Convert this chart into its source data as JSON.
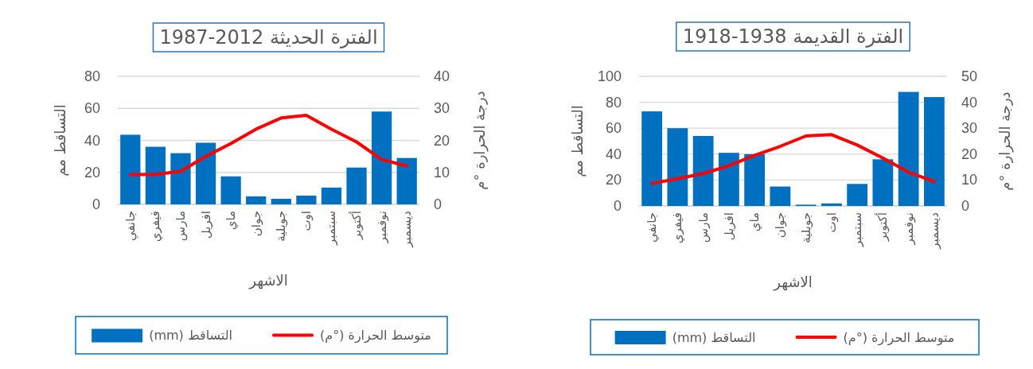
{
  "chart_data": [
    {
      "type": "bar",
      "title": "الفترة الحديثة 2012-1987",
      "xlabel": "الاشهر",
      "ylabel": "التساقط مم",
      "y2label": "درجة الحرارة °م",
      "categories": [
        "جانفي",
        "فيفري",
        "مارس",
        "افريل",
        "ماي",
        "جوان",
        "جويلية",
        "اوت",
        "سبتمبر",
        "أكتوبر",
        "نوفمبر",
        "ديسمبر"
      ],
      "series": [
        {
          "name": "التساقط (mm)",
          "color": "#0070c0",
          "values": [
            43.5,
            36,
            32,
            38.5,
            17.5,
            5,
            3.5,
            5.5,
            10.5,
            23,
            58,
            29
          ]
        },
        {
          "name": "متوسط الحرارة (°م)",
          "type": "line",
          "axis": "y2",
          "color": "#ff0000",
          "values": [
            9.3,
            9.4,
            10.3,
            15,
            19,
            23.5,
            27,
            27.8,
            23.5,
            19.5,
            14,
            12
          ]
        }
      ],
      "ylim": [
        0,
        80
      ],
      "yticks": [
        0,
        20,
        40,
        60,
        80
      ],
      "y2lim": [
        0,
        40
      ],
      "y2ticks": [
        0,
        10,
        20,
        30,
        40
      ],
      "grid": "y",
      "legend": "bottom"
    },
    {
      "type": "bar",
      "title": "الفترة القديمة 1938-1918",
      "xlabel": "الاشهر",
      "ylabel": "التساقط مم",
      "y2label": "درجة الحرارة °م",
      "categories": [
        "جانفي",
        "فيفري",
        "مارس",
        "افريل",
        "ماي",
        "جوان",
        "جويلية",
        "اوت",
        "سبتمبر",
        "أكتوبر",
        "نوفمبر",
        "ديسمبر"
      ],
      "series": [
        {
          "name": "التساقط (mm)",
          "color": "#0070c0",
          "values": [
            73,
            60,
            54,
            41,
            40,
            15,
            1,
            2,
            17,
            36,
            88,
            84
          ]
        },
        {
          "name": "متوسط الحرارة (°م)",
          "type": "line",
          "axis": "y2",
          "color": "#ff0000",
          "values": [
            8.7,
            10.5,
            12.5,
            15.5,
            19.5,
            23,
            27,
            27.5,
            23.5,
            18.5,
            13,
            9.5
          ]
        }
      ],
      "ylim": [
        0,
        100
      ],
      "yticks": [
        0,
        20,
        40,
        60,
        80,
        100
      ],
      "y2lim": [
        0,
        50
      ],
      "y2ticks": [
        0,
        10,
        20,
        30,
        40,
        50
      ],
      "grid": "y",
      "legend": "bottom"
    }
  ]
}
